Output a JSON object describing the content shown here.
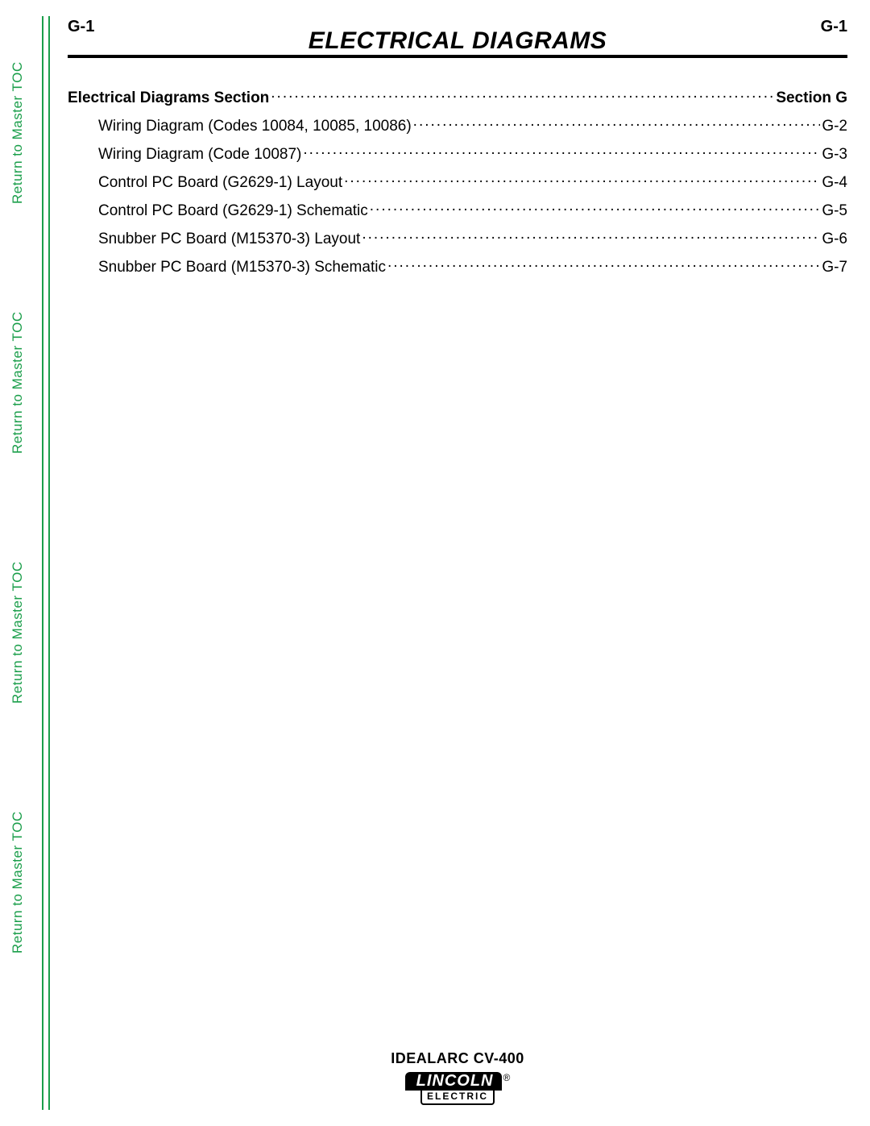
{
  "colors": {
    "accent_green": "#1a9e4a",
    "text": "#000000",
    "background": "#ffffff"
  },
  "typography": {
    "body_font": "Arial, Helvetica, sans-serif",
    "title_fontsize_pt": 22,
    "body_fontsize_pt": 14,
    "sidebar_fontsize_pt": 13
  },
  "sidebar_link_text": "Return to Master TOC",
  "header": {
    "page_number_left": "G-1",
    "page_number_right": "G-1",
    "title": "ELECTRICAL DIAGRAMS"
  },
  "toc": {
    "section": {
      "label": "Electrical Diagrams Section",
      "page": "Section G"
    },
    "items": [
      {
        "label": "Wiring Diagram (Codes 10084, 10085, 10086)",
        "page": "G-2"
      },
      {
        "label": "Wiring Diagram (Code 10087)",
        "page": "G-3"
      },
      {
        "label": "Control PC Board (G2629-1) Layout",
        "page": "G-4"
      },
      {
        "label": "Control PC Board (G2629-1) Schematic",
        "page": "G-5"
      },
      {
        "label": "Snubber PC Board (M15370-3) Layout",
        "page": "G-6"
      },
      {
        "label": "Snubber PC Board (M15370-3) Schematic",
        "page": "G-7"
      }
    ]
  },
  "footer": {
    "model": "IDEALARC CV-400",
    "logo_top": "LINCOLN",
    "logo_reg": "®",
    "logo_bottom": "ELECTRIC"
  }
}
